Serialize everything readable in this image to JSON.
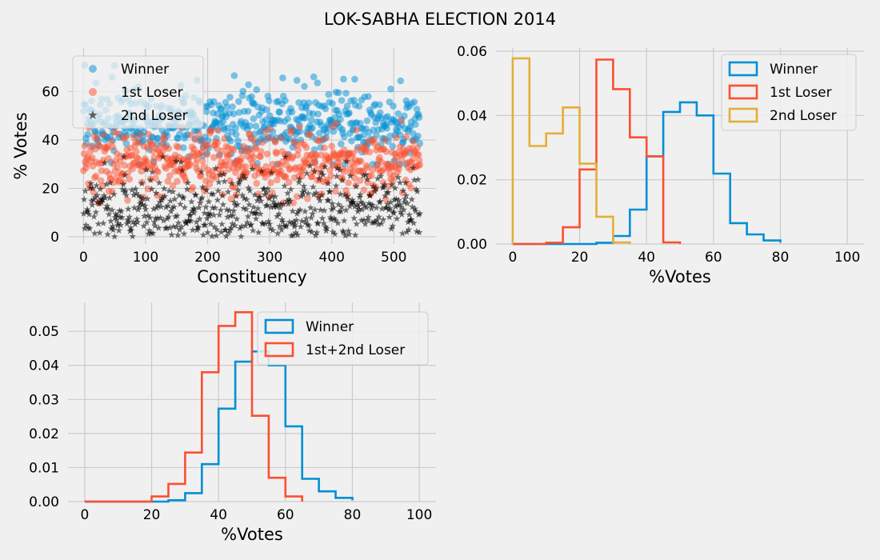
{
  "figure": {
    "title": "LOK-SABHA ELECTION 2014",
    "colors": {
      "background": "#f0f0f0",
      "grid": "#cbcbcb",
      "text": "#000000"
    }
  },
  "chart_data": [
    {
      "type": "scatter",
      "xlabel": "Constituency",
      "ylabel": "% Votes",
      "xlim": [
        -25,
        568
      ],
      "ylim": [
        -3,
        78
      ],
      "xticks": [
        0,
        100,
        200,
        300,
        400,
        500
      ],
      "yticks": [
        0,
        20,
        40,
        60
      ],
      "grid": true,
      "legend_placement": "upper-left",
      "series": [
        {
          "name": "Winner",
          "color": "#008fd5",
          "marker": "circle",
          "n": 543,
          "approx_range": [
            30,
            76
          ]
        },
        {
          "name": "1st Loser",
          "color": "#fc4f30",
          "marker": "circle",
          "n": 543,
          "approx_range": [
            14,
            48
          ]
        },
        {
          "name": "2nd Loser",
          "color": "#000000",
          "marker": "star",
          "n": 543,
          "approx_range": [
            0,
            33
          ]
        }
      ]
    },
    {
      "type": "histogram",
      "xlabel": "%Votes",
      "ylabel": "",
      "xlim": [
        -5,
        105
      ],
      "ylim": [
        0,
        0.061
      ],
      "xticks": [
        0,
        20,
        40,
        60,
        80,
        100
      ],
      "yticks": [
        0.0,
        0.02,
        0.04,
        0.06
      ],
      "ytick_labels": [
        "0.00",
        "0.02",
        "0.04",
        "0.06"
      ],
      "grid": true,
      "legend_placement": "upper-right",
      "bin_edges": [
        0,
        5,
        10,
        15,
        20,
        25,
        30,
        35,
        40,
        45,
        50,
        55,
        60,
        65,
        70,
        75,
        80
      ],
      "series": [
        {
          "name": "Winner",
          "color": "#008fd5",
          "values": [
            0,
            0,
            0,
            0,
            0,
            0.0004,
            0.0025,
            0.0107,
            0.0273,
            0.0411,
            0.0441,
            0.04,
            0.0219,
            0.0065,
            0.003,
            0.0011,
            0.0004
          ]
        },
        {
          "name": "1st Loser",
          "color": "#fc4f30",
          "values": [
            0,
            0,
            0.0004,
            0.0052,
            0.0232,
            0.0574,
            0.0482,
            0.0332,
            0.0273,
            0.0005
          ]
        },
        {
          "name": "2nd Loser",
          "color": "#e5ae38",
          "values": [
            0.0578,
            0.0305,
            0.0344,
            0.0425,
            0.025,
            0.0085,
            0.0005
          ]
        }
      ]
    },
    {
      "type": "histogram",
      "xlabel": "%Votes",
      "ylabel": "",
      "xlim": [
        -5,
        105
      ],
      "ylim": [
        0,
        0.0585
      ],
      "xticks": [
        0,
        20,
        40,
        60,
        80,
        100
      ],
      "yticks": [
        0.0,
        0.01,
        0.02,
        0.03,
        0.04,
        0.05
      ],
      "ytick_labels": [
        "0.00",
        "0.01",
        "0.02",
        "0.03",
        "0.04",
        "0.05"
      ],
      "grid": true,
      "legend_placement": "upper-right",
      "bin_edges": [
        0,
        5,
        10,
        15,
        20,
        25,
        30,
        35,
        40,
        45,
        50,
        55,
        60,
        65,
        70,
        75,
        80
      ],
      "series": [
        {
          "name": "Winner",
          "color": "#008fd5",
          "values": [
            0,
            0,
            0,
            0,
            0,
            0.0004,
            0.0025,
            0.011,
            0.0273,
            0.0411,
            0.0441,
            0.04,
            0.0221,
            0.0067,
            0.003,
            0.0011,
            0.0004
          ]
        },
        {
          "name": "1st+2nd Loser",
          "color": "#fc4f30",
          "values": [
            0,
            0,
            0,
            0,
            0.0015,
            0.0052,
            0.0144,
            0.038,
            0.0516,
            0.0556,
            0.0252,
            0.007,
            0.0015
          ]
        }
      ]
    }
  ]
}
